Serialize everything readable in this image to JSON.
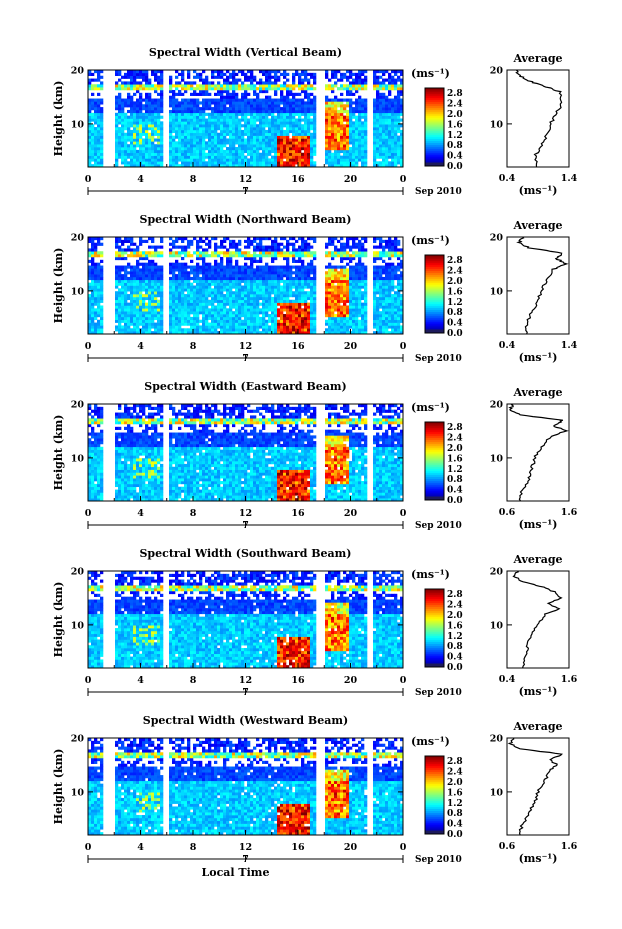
{
  "chart_data": [
    {
      "type": "heatmap",
      "title": "Spectral Width (Vertical Beam)",
      "ylabel": "Height (km)",
      "ylim": [
        2,
        20
      ],
      "yticks": [
        "20",
        "10"
      ],
      "xlim": [
        0,
        24
      ],
      "xticks": [
        "0",
        "4",
        "8",
        "12",
        "16",
        "20",
        "0"
      ],
      "day": "7",
      "date_label": "Sep 2010",
      "colorbar": {
        "unit": "(ms⁻¹)",
        "ticks": [
          "2.8",
          "2.4",
          "2.0",
          "1.6",
          "1.2",
          "0.8",
          "0.4",
          "0.0"
        ],
        "range": [
          0,
          3.0
        ]
      },
      "gaps_hours": [
        [
          1.1,
          2.1
        ],
        [
          5.8,
          6.2
        ],
        [
          17.4,
          18.0
        ],
        [
          21.2,
          21.7
        ]
      ],
      "average": {
        "title": "Average",
        "unit": "(ms⁻¹)",
        "xticks": [
          "0.4",
          "1.4"
        ],
        "xlim": [
          0.4,
          1.4
        ],
        "ylim": [
          2,
          20
        ],
        "height_km": [
          2,
          4,
          6,
          8,
          10,
          12,
          14,
          16,
          17,
          18,
          19,
          20
        ],
        "width": [
          0.9,
          0.85,
          0.95,
          1.05,
          1.1,
          1.2,
          1.3,
          1.25,
          1.0,
          0.75,
          0.6,
          0.55
        ]
      }
    },
    {
      "type": "heatmap",
      "title": "Spectral Width (Northward Beam)",
      "ylabel": "Height (km)",
      "ylim": [
        2,
        20
      ],
      "yticks": [
        "20",
        "10"
      ],
      "xlim": [
        0,
        24
      ],
      "xticks": [
        "0",
        "4",
        "8",
        "12",
        "16",
        "20",
        "0"
      ],
      "day": "7",
      "date_label": "Sep 2010",
      "colorbar": {
        "unit": "(ms⁻¹)",
        "ticks": [
          "2.8",
          "2.4",
          "2.0",
          "1.6",
          "1.2",
          "0.8",
          "0.4",
          "0.0"
        ],
        "range": [
          0,
          3.0
        ]
      },
      "gaps_hours": [
        [
          1.1,
          2.1
        ],
        [
          5.8,
          6.2
        ],
        [
          17.4,
          18.0
        ],
        [
          21.2,
          21.7
        ]
      ],
      "average": {
        "title": "Average",
        "unit": "(ms⁻¹)",
        "xticks": [
          "0.4",
          "1.4"
        ],
        "xlim": [
          0.4,
          1.4
        ],
        "ylim": [
          2,
          20
        ],
        "height_km": [
          2,
          4,
          6,
          8,
          10,
          12,
          14,
          15,
          16,
          17,
          18,
          19,
          20
        ],
        "width": [
          0.7,
          0.72,
          0.8,
          0.9,
          0.95,
          1.05,
          1.15,
          1.35,
          1.2,
          1.3,
          0.75,
          0.6,
          0.65
        ]
      }
    },
    {
      "type": "heatmap",
      "title": "Spectral Width (Eastward Beam)",
      "ylabel": "Height (km)",
      "ylim": [
        2,
        20
      ],
      "yticks": [
        "20",
        "10"
      ],
      "xlim": [
        0,
        24
      ],
      "xticks": [
        "0",
        "4",
        "8",
        "12",
        "16",
        "20",
        "0"
      ],
      "day": "7",
      "date_label": "Sep 2010",
      "colorbar": {
        "unit": "(ms⁻¹)",
        "ticks": [
          "2.8",
          "2.4",
          "2.0",
          "1.6",
          "1.2",
          "0.8",
          "0.4",
          "0.0"
        ],
        "range": [
          0,
          3.0
        ]
      },
      "gaps_hours": [
        [
          1.1,
          2.1
        ],
        [
          5.8,
          6.2
        ],
        [
          17.4,
          18.0
        ],
        [
          21.2,
          21.7
        ]
      ],
      "average": {
        "title": "Average",
        "unit": "(ms⁻¹)",
        "xticks": [
          "0.6",
          "1.6"
        ],
        "xlim": [
          0.6,
          1.6
        ],
        "ylim": [
          2,
          20
        ],
        "height_km": [
          2,
          4,
          6,
          8,
          10,
          12,
          14,
          15,
          16,
          17,
          18,
          19,
          20
        ],
        "width": [
          0.8,
          0.85,
          0.95,
          1.0,
          1.05,
          1.15,
          1.3,
          1.55,
          1.35,
          1.5,
          0.8,
          0.65,
          0.7
        ]
      }
    },
    {
      "type": "heatmap",
      "title": "Spectral Width (Southward Beam)",
      "ylabel": "Height (km)",
      "ylim": [
        2,
        20
      ],
      "yticks": [
        "20",
        "10"
      ],
      "xlim": [
        0,
        24
      ],
      "xticks": [
        "0",
        "4",
        "8",
        "12",
        "16",
        "20",
        "0"
      ],
      "day": "7",
      "date_label": "Sep 2010",
      "colorbar": {
        "unit": "(ms⁻¹)",
        "ticks": [
          "2.8",
          "2.4",
          "2.0",
          "1.6",
          "1.2",
          "0.8",
          "0.4",
          "0.0"
        ],
        "range": [
          0,
          3.0
        ]
      },
      "gaps_hours": [
        [
          1.1,
          2.1
        ],
        [
          5.8,
          6.2
        ],
        [
          17.4,
          18.0
        ],
        [
          21.2,
          21.7
        ]
      ],
      "average": {
        "title": "Average",
        "unit": "(ms⁻¹)",
        "xticks": [
          "0.4",
          "1.6"
        ],
        "xlim": [
          0.4,
          1.6
        ],
        "ylim": [
          2,
          20
        ],
        "height_km": [
          2,
          4,
          6,
          8,
          10,
          12,
          13,
          14,
          15,
          16,
          17,
          18,
          19,
          20
        ],
        "width": [
          0.7,
          0.75,
          0.8,
          0.85,
          1.0,
          1.15,
          1.4,
          1.2,
          1.45,
          1.35,
          1.1,
          0.7,
          0.55,
          0.6
        ]
      }
    },
    {
      "type": "heatmap",
      "title": "Spectral Width (Westward Beam)",
      "ylabel": "Height (km)",
      "ylim": [
        2,
        20
      ],
      "yticks": [
        "20",
        "10"
      ],
      "xlim": [
        0,
        24
      ],
      "xticks": [
        "0",
        "4",
        "8",
        "12",
        "16",
        "20",
        "0"
      ],
      "day": "7",
      "date_label": "Sep 2010",
      "xlabel": "Local Time",
      "colorbar": {
        "unit": "(ms⁻¹)",
        "ticks": [
          "2.8",
          "2.4",
          "2.0",
          "1.6",
          "1.2",
          "0.8",
          "0.4",
          "0.0"
        ],
        "range": [
          0,
          3.0
        ]
      },
      "gaps_hours": [
        [
          1.1,
          2.1
        ],
        [
          5.8,
          6.2
        ],
        [
          17.4,
          18.0
        ],
        [
          21.2,
          21.7
        ]
      ],
      "average": {
        "title": "Average",
        "unit": "(ms⁻¹)",
        "xticks": [
          "0.6",
          "1.6"
        ],
        "xlim": [
          0.6,
          1.6
        ],
        "ylim": [
          2,
          20
        ],
        "height_km": [
          2,
          4,
          6,
          8,
          10,
          12,
          14,
          15,
          16,
          17,
          18,
          19,
          20
        ],
        "width": [
          0.8,
          0.85,
          0.95,
          1.05,
          1.1,
          1.2,
          1.3,
          1.4,
          1.3,
          1.5,
          0.8,
          0.65,
          0.7
        ]
      }
    }
  ]
}
